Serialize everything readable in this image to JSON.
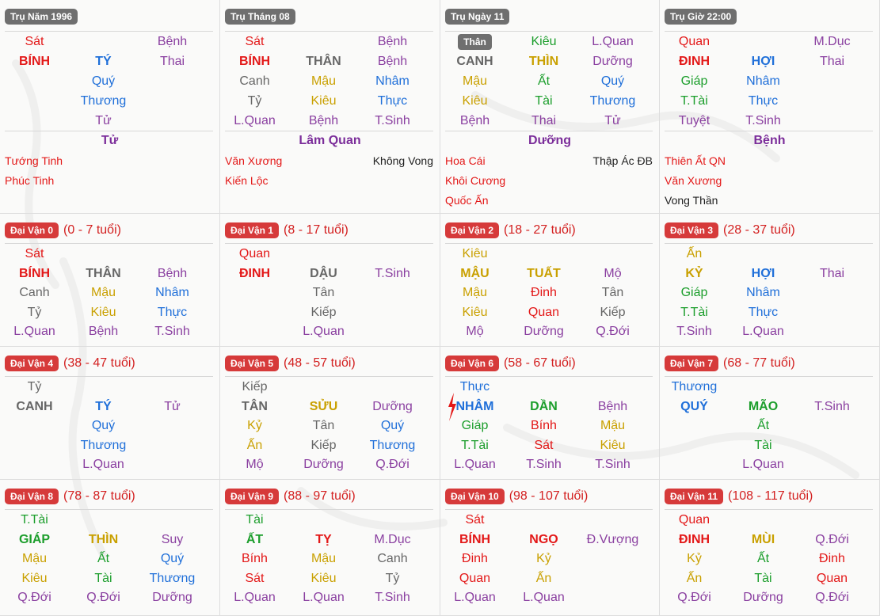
{
  "colors": {
    "red": "#e31818",
    "blue": "#1f6fd9",
    "green": "#1c9e2c",
    "gold": "#c9a000",
    "gray": "#666666",
    "purple": "#8a3fa0",
    "black": "#222222",
    "badge_gray": "#6f6f6f",
    "badge_red": "#d63a3a"
  },
  "pillars": [
    {
      "title": "Trụ Năm 1996",
      "top": [
        "Sát",
        "",
        "Bệnh"
      ],
      "top_colors": [
        "red",
        "",
        "purple"
      ],
      "stem": "BÍNH",
      "stem_color": "red",
      "branch": "TÝ",
      "branch_color": "blue",
      "branch_extra": "Thai",
      "branch_extra_color": "purple",
      "hidden": [
        [
          "",
          "Quý",
          ""
        ],
        [
          "",
          "Thương",
          ""
        ],
        [
          "",
          "Tử",
          ""
        ]
      ],
      "hidden_colors": [
        [
          "",
          "blue",
          ""
        ],
        [
          "",
          "blue",
          ""
        ],
        [
          "",
          "purple",
          ""
        ]
      ],
      "phase": "Tử",
      "stars_left": [
        "Tướng Tinh",
        "Phúc Tinh"
      ],
      "stars_right": []
    },
    {
      "title": "Trụ Tháng 08",
      "top": [
        "Sát",
        "",
        "Bệnh"
      ],
      "top_colors": [
        "red",
        "",
        "purple"
      ],
      "stem": "BÍNH",
      "stem_color": "red",
      "branch": "THÂN",
      "branch_color": "gray",
      "branch_extra": "Bệnh",
      "branch_extra_color": "purple",
      "hidden": [
        [
          "Canh",
          "Mậu",
          "Nhâm"
        ],
        [
          "Tỷ",
          "Kiêu",
          "Thực"
        ],
        [
          "L.Quan",
          "Bệnh",
          "T.Sinh"
        ]
      ],
      "hidden_colors": [
        [
          "gray",
          "gold",
          "blue"
        ],
        [
          "gray",
          "gold",
          "blue"
        ],
        [
          "purple",
          "purple",
          "purple"
        ]
      ],
      "phase": "Lâm Quan",
      "stars_left": [
        "Văn Xương",
        "Kiến Lộc"
      ],
      "stars_right": [
        "Không Vong"
      ]
    },
    {
      "title": "Trụ Ngày 11",
      "than_badge": "Thân",
      "top": [
        "",
        "Kiêu",
        "L.Quan"
      ],
      "top_colors": [
        "",
        "green",
        "purple"
      ],
      "stem": "CANH",
      "stem_color": "gray",
      "branch": "THÌN",
      "branch_color": "gold",
      "branch_extra": "Dưỡng",
      "branch_extra_color": "purple",
      "hidden": [
        [
          "Mậu",
          "Ất",
          "Quý"
        ],
        [
          "Kiêu",
          "Tài",
          "Thương"
        ],
        [
          "Bệnh",
          "Thai",
          "Tử"
        ]
      ],
      "hidden_colors": [
        [
          "gold",
          "green",
          "blue"
        ],
        [
          "gold",
          "green",
          "blue"
        ],
        [
          "purple",
          "purple",
          "purple"
        ]
      ],
      "phase": "Dưỡng",
      "stars_left": [
        "Hoa Cái",
        "Khôi Cương",
        "Quốc Ấn"
      ],
      "stars_right": [
        "Thập Ác ĐB"
      ]
    },
    {
      "title": "Trụ Giờ 22:00",
      "top": [
        "Quan",
        "",
        "M.Dục"
      ],
      "top_colors": [
        "red",
        "",
        "purple"
      ],
      "stem": "ĐINH",
      "stem_color": "red",
      "branch": "HỢI",
      "branch_color": "blue",
      "branch_extra": "Thai",
      "branch_extra_color": "purple",
      "hidden": [
        [
          "Giáp",
          "Nhâm",
          ""
        ],
        [
          "T.Tài",
          "Thực",
          ""
        ],
        [
          "Tuyệt",
          "T.Sinh",
          ""
        ]
      ],
      "hidden_colors": [
        [
          "green",
          "blue",
          ""
        ],
        [
          "green",
          "blue",
          ""
        ],
        [
          "purple",
          "purple",
          ""
        ]
      ],
      "phase": "Bệnh",
      "stars_left": [
        "Thiên Ất QN",
        "Văn Xương",
        "Vong Thần"
      ],
      "stars_left_colors": [
        "red",
        "red",
        "black"
      ],
      "stars_right": []
    }
  ],
  "dai_van": [
    {
      "label": "Đại Vận 0",
      "age": "(0 - 7 tuổi)",
      "rows": [
        [
          "Sát",
          "",
          ""
        ],
        [
          "BÍNH",
          "THÂN",
          "Bệnh"
        ],
        [
          "Canh",
          "Mậu",
          "Nhâm"
        ],
        [
          "Tỷ",
          "Kiêu",
          "Thực"
        ],
        [
          "L.Quan",
          "Bệnh",
          "T.Sinh"
        ]
      ],
      "colors": [
        [
          "red",
          "",
          ""
        ],
        [
          "red",
          "gray",
          "purple"
        ],
        [
          "gray",
          "gold",
          "blue"
        ],
        [
          "gray",
          "gold",
          "blue"
        ],
        [
          "purple",
          "purple",
          "purple"
        ]
      ]
    },
    {
      "label": "Đại Vận 1",
      "age": "(8 - 17 tuổi)",
      "rows": [
        [
          "Quan",
          "",
          ""
        ],
        [
          "ĐINH",
          "DẬU",
          "T.Sinh"
        ],
        [
          "",
          "Tân",
          ""
        ],
        [
          "",
          "Kiếp",
          ""
        ],
        [
          "",
          "L.Quan",
          ""
        ]
      ],
      "colors": [
        [
          "red",
          "",
          ""
        ],
        [
          "red",
          "gray",
          "purple"
        ],
        [
          "",
          "gray",
          ""
        ],
        [
          "",
          "gray",
          ""
        ],
        [
          "",
          "purple",
          ""
        ]
      ]
    },
    {
      "label": "Đại Vận 2",
      "age": "(18 - 27 tuổi)",
      "rows": [
        [
          "Kiêu",
          "",
          ""
        ],
        [
          "MẬU",
          "TUẤT",
          "Mộ"
        ],
        [
          "Mậu",
          "Đinh",
          "Tân"
        ],
        [
          "Kiêu",
          "Quan",
          "Kiếp"
        ],
        [
          "Mộ",
          "Dưỡng",
          "Q.Đới"
        ]
      ],
      "colors": [
        [
          "gold",
          "",
          ""
        ],
        [
          "gold",
          "gold",
          "purple"
        ],
        [
          "gold",
          "red",
          "gray"
        ],
        [
          "gold",
          "red",
          "gray"
        ],
        [
          "purple",
          "purple",
          "purple"
        ]
      ]
    },
    {
      "label": "Đại Vận 3",
      "age": "(28 - 37 tuổi)",
      "rows": [
        [
          "Ấn",
          "",
          ""
        ],
        [
          "KỶ",
          "HỢI",
          "Thai"
        ],
        [
          "Giáp",
          "Nhâm",
          ""
        ],
        [
          "T.Tài",
          "Thực",
          ""
        ],
        [
          "T.Sinh",
          "L.Quan",
          ""
        ]
      ],
      "colors": [
        [
          "gold",
          "",
          ""
        ],
        [
          "gold",
          "blue",
          "purple"
        ],
        [
          "green",
          "blue",
          ""
        ],
        [
          "green",
          "blue",
          ""
        ],
        [
          "purple",
          "purple",
          ""
        ]
      ]
    },
    {
      "label": "Đại Vận 4",
      "age": "(38 - 47 tuổi)",
      "rows": [
        [
          "Tỷ",
          "",
          ""
        ],
        [
          "CANH",
          "TÝ",
          "Tử"
        ],
        [
          "",
          "Quý",
          ""
        ],
        [
          "",
          "Thương",
          ""
        ],
        [
          "",
          "L.Quan",
          ""
        ]
      ],
      "colors": [
        [
          "gray",
          "",
          ""
        ],
        [
          "gray",
          "blue",
          "purple"
        ],
        [
          "",
          "blue",
          ""
        ],
        [
          "",
          "blue",
          ""
        ],
        [
          "",
          "purple",
          ""
        ]
      ]
    },
    {
      "label": "Đại Vận 5",
      "age": "(48 - 57 tuổi)",
      "rows": [
        [
          "Kiếp",
          "",
          ""
        ],
        [
          "TÂN",
          "SỬU",
          "Dưỡng"
        ],
        [
          "Kỷ",
          "Tân",
          "Quý"
        ],
        [
          "Ấn",
          "Kiếp",
          "Thương"
        ],
        [
          "Mộ",
          "Dưỡng",
          "Q.Đới"
        ]
      ],
      "colors": [
        [
          "gray",
          "",
          ""
        ],
        [
          "gray",
          "gold",
          "purple"
        ],
        [
          "gold",
          "gray",
          "blue"
        ],
        [
          "gold",
          "gray",
          "blue"
        ],
        [
          "purple",
          "purple",
          "purple"
        ]
      ]
    },
    {
      "label": "Đại Vận 6",
      "age": "(58 - 67 tuổi)",
      "lightning": true,
      "rows": [
        [
          "Thực",
          "",
          ""
        ],
        [
          "NHÂM",
          "DẦN",
          "Bệnh"
        ],
        [
          "Giáp",
          "Bính",
          "Mậu"
        ],
        [
          "T.Tài",
          "Sát",
          "Kiêu"
        ],
        [
          "L.Quan",
          "T.Sinh",
          "T.Sinh"
        ]
      ],
      "colors": [
        [
          "blue",
          "",
          ""
        ],
        [
          "blue",
          "green",
          "purple"
        ],
        [
          "green",
          "red",
          "gold"
        ],
        [
          "green",
          "red",
          "gold"
        ],
        [
          "purple",
          "purple",
          "purple"
        ]
      ]
    },
    {
      "label": "Đại Vận 7",
      "age": "(68 - 77 tuổi)",
      "rows": [
        [
          "Thương",
          "",
          ""
        ],
        [
          "QUÝ",
          "MÃO",
          "T.Sinh"
        ],
        [
          "",
          "Ất",
          ""
        ],
        [
          "",
          "Tài",
          ""
        ],
        [
          "",
          "L.Quan",
          ""
        ]
      ],
      "colors": [
        [
          "blue",
          "",
          ""
        ],
        [
          "blue",
          "green",
          "purple"
        ],
        [
          "",
          "green",
          ""
        ],
        [
          "",
          "green",
          ""
        ],
        [
          "",
          "purple",
          ""
        ]
      ]
    },
    {
      "label": "Đại Vận 8",
      "age": "(78 - 87 tuổi)",
      "rows": [
        [
          "T.Tài",
          "",
          ""
        ],
        [
          "GIÁP",
          "THÌN",
          "Suy"
        ],
        [
          "Mậu",
          "Ất",
          "Quý"
        ],
        [
          "Kiêu",
          "Tài",
          "Thương"
        ],
        [
          "Q.Đới",
          "Q.Đới",
          "Dưỡng"
        ]
      ],
      "colors": [
        [
          "green",
          "",
          ""
        ],
        [
          "green",
          "gold",
          "purple"
        ],
        [
          "gold",
          "green",
          "blue"
        ],
        [
          "gold",
          "green",
          "blue"
        ],
        [
          "purple",
          "purple",
          "purple"
        ]
      ]
    },
    {
      "label": "Đại Vận 9",
      "age": "(88 - 97 tuổi)",
      "rows": [
        [
          "Tài",
          "",
          ""
        ],
        [
          "ẤT",
          "TỴ",
          "M.Dục"
        ],
        [
          "Bính",
          "Mậu",
          "Canh"
        ],
        [
          "Sát",
          "Kiêu",
          "Tỷ"
        ],
        [
          "L.Quan",
          "L.Quan",
          "T.Sinh"
        ]
      ],
      "colors": [
        [
          "green",
          "",
          ""
        ],
        [
          "green",
          "red",
          "purple"
        ],
        [
          "red",
          "gold",
          "gray"
        ],
        [
          "red",
          "gold",
          "gray"
        ],
        [
          "purple",
          "purple",
          "purple"
        ]
      ]
    },
    {
      "label": "Đại Vận 10",
      "age": "(98 - 107 tuổi)",
      "rows": [
        [
          "Sát",
          "",
          ""
        ],
        [
          "BÍNH",
          "NGỌ",
          "Đ.Vượng"
        ],
        [
          "Đinh",
          "Kỷ",
          ""
        ],
        [
          "Quan",
          "Ấn",
          ""
        ],
        [
          "L.Quan",
          "L.Quan",
          ""
        ]
      ],
      "colors": [
        [
          "red",
          "",
          ""
        ],
        [
          "red",
          "red",
          "purple"
        ],
        [
          "red",
          "gold",
          ""
        ],
        [
          "red",
          "gold",
          ""
        ],
        [
          "purple",
          "purple",
          ""
        ]
      ]
    },
    {
      "label": "Đại Vận 11",
      "age": "(108 - 117 tuổi)",
      "rows": [
        [
          "Quan",
          "",
          ""
        ],
        [
          "ĐINH",
          "MÙI",
          "Q.Đới"
        ],
        [
          "Kỷ",
          "Ất",
          "Đinh"
        ],
        [
          "Ấn",
          "Tài",
          "Quan"
        ],
        [
          "Q.Đới",
          "Dưỡng",
          "Q.Đới"
        ]
      ],
      "colors": [
        [
          "red",
          "",
          ""
        ],
        [
          "red",
          "gold",
          "purple"
        ],
        [
          "gold",
          "green",
          "red"
        ],
        [
          "gold",
          "green",
          "red"
        ],
        [
          "purple",
          "purple",
          "purple"
        ]
      ]
    }
  ]
}
